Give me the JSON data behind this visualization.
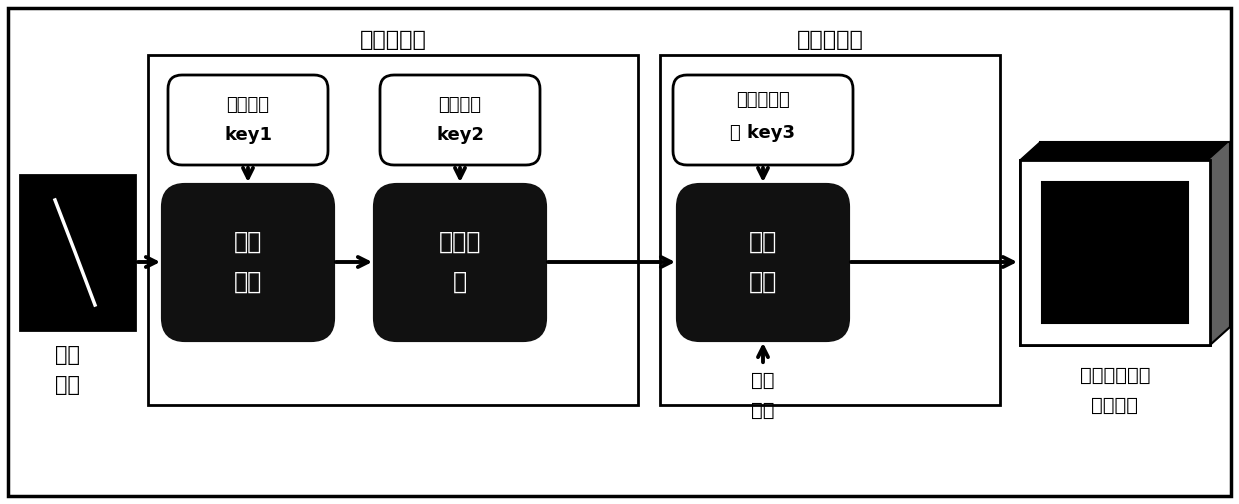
{
  "bg_color": "#ffffff",
  "box1_label_line1": "加密密钥",
  "box1_label_line2": "key1",
  "box2_label_line1": "加密密钥",
  "box2_label_line2": "key2",
  "box3_label_line1": "数据隐藏密",
  "box3_label_line2": "钥 key3",
  "proc1_line1": "图像",
  "proc1_line2": "加密",
  "proc2_line1": "嵌密信",
  "proc2_line2": "息",
  "proc3_line1": "数据",
  "proc3_line2": "嵌入",
  "src_label_line1": "原始",
  "src_label_line2": "图像",
  "dst_label_line1": "含隐秘信息的",
  "dst_label_line2": "加密图像",
  "secret_label_line1": "隐秘",
  "secret_label_line2": "信息",
  "group1_label": "内容拥有者",
  "group2_label": "数据隐藏者",
  "fig_w": 12.39,
  "fig_h": 5.04,
  "dpi": 100
}
